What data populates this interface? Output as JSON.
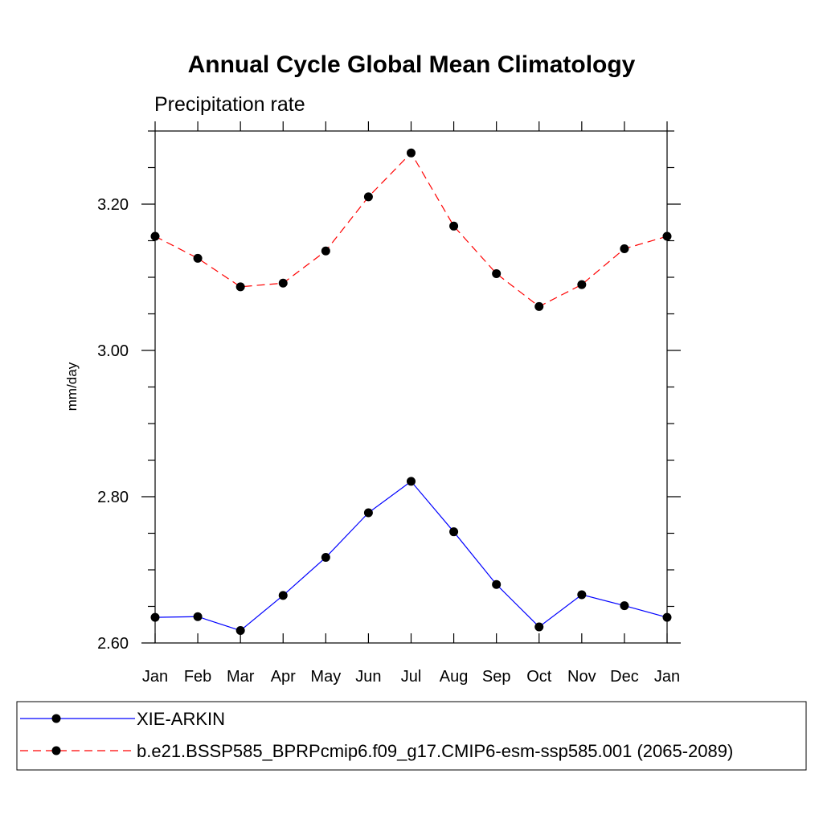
{
  "chart_data": {
    "type": "line",
    "title": "Annual Cycle Global Mean Climatology",
    "subtitle": "Precipitation rate",
    "ylabel": "mm/day",
    "xlabel": "",
    "categories": [
      "Jan",
      "Feb",
      "Mar",
      "Apr",
      "May",
      "Jun",
      "Jul",
      "Aug",
      "Sep",
      "Oct",
      "Nov",
      "Dec",
      "Jan"
    ],
    "ylim": [
      2.6,
      3.3
    ],
    "yticks": [
      2.6,
      2.8,
      3.0,
      3.2
    ],
    "ytick_labels": [
      "2.60",
      "2.80",
      "3.00",
      "3.20"
    ],
    "grid": false,
    "legend_position": "bottom",
    "series": [
      {
        "name": "XIE-ARKIN",
        "color": "#0000ff",
        "dash": "solid",
        "values": [
          2.635,
          2.636,
          2.617,
          2.665,
          2.717,
          2.778,
          2.821,
          2.752,
          2.68,
          2.622,
          2.666,
          2.651,
          2.635
        ]
      },
      {
        "name": "b.e21.BSSP585_BPRPcmip6.f09_g17.CMIP6-esm-ssp585.001 (2065-2089)",
        "color": "#ff0000",
        "dash": "dashed",
        "values": [
          3.156,
          3.126,
          3.087,
          3.092,
          3.136,
          3.21,
          3.27,
          3.17,
          3.105,
          3.06,
          3.09,
          3.139,
          3.156
        ]
      }
    ]
  }
}
